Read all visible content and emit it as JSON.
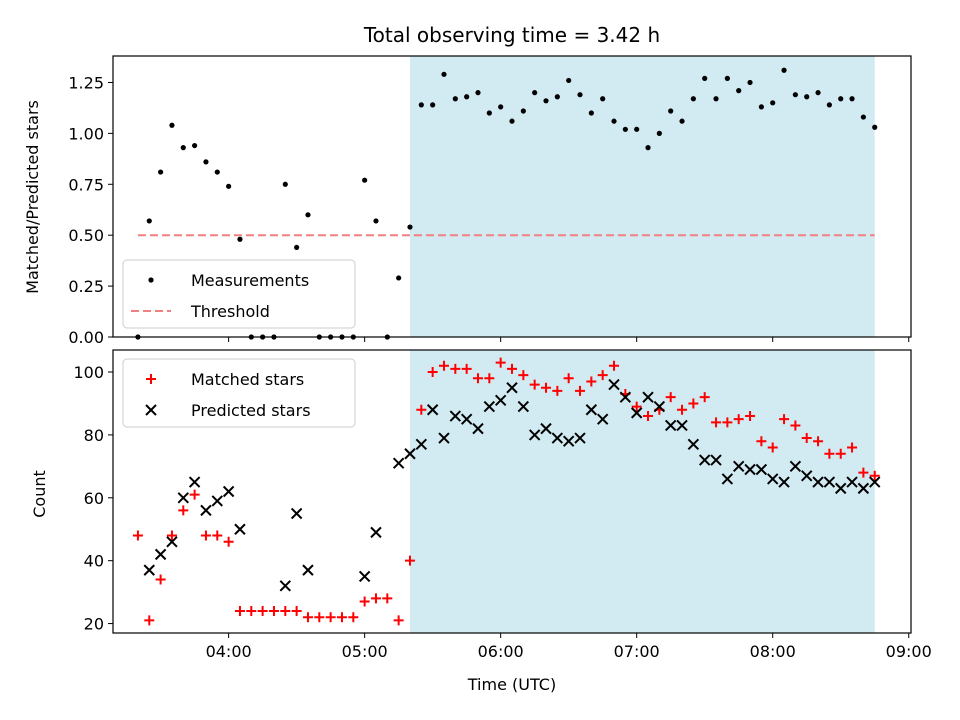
{
  "chart_data": [
    {
      "type": "scatter",
      "title": "Total observing time = 3.42 h",
      "ylabel": "Matched/Predicted stars",
      "xlabel": "",
      "ylim": [
        0,
        1.38
      ],
      "yticks": [
        0.0,
        0.25,
        0.5,
        0.75,
        1.0,
        1.25
      ],
      "yticklabels": [
        "0.00",
        "0.25",
        "0.50",
        "0.75",
        "1.00",
        "1.25"
      ],
      "xlim": [
        "03:09",
        "09:01"
      ],
      "xticks": [
        "04:00",
        "05:00",
        "06:00",
        "07:00",
        "08:00",
        "09:00"
      ],
      "shaded_region": {
        "start": "05:20",
        "end": "08:45",
        "color": "#add8e6"
      },
      "legend": {
        "position": "lower-left",
        "entries": [
          "Measurements",
          "Threshold"
        ]
      },
      "threshold": {
        "name": "Threshold",
        "value": 0.5,
        "x": [
          "03:20",
          "08:45"
        ],
        "color": "#f08080",
        "style": "dashed"
      },
      "series": [
        {
          "name": "Measurements",
          "color": "#000000",
          "points": [
            [
              "03:20",
              0.0
            ],
            [
              "03:25",
              0.57
            ],
            [
              "03:30",
              0.81
            ],
            [
              "03:35",
              1.04
            ],
            [
              "03:40",
              0.93
            ],
            [
              "03:45",
              0.94
            ],
            [
              "03:50",
              0.86
            ],
            [
              "03:55",
              0.81
            ],
            [
              "04:00",
              0.74
            ],
            [
              "04:05",
              0.48
            ],
            [
              "04:10",
              0.0
            ],
            [
              "04:15",
              0.0
            ],
            [
              "04:20",
              0.0
            ],
            [
              "04:25",
              0.75
            ],
            [
              "04:30",
              0.44
            ],
            [
              "04:35",
              0.6
            ],
            [
              "04:40",
              0.0
            ],
            [
              "04:45",
              0.0
            ],
            [
              "04:50",
              0.0
            ],
            [
              "04:55",
              0.0
            ],
            [
              "05:00",
              0.77
            ],
            [
              "05:05",
              0.57
            ],
            [
              "05:10",
              0.0
            ],
            [
              "05:15",
              0.29
            ],
            [
              "05:20",
              0.54
            ],
            [
              "05:25",
              1.14
            ],
            [
              "05:30",
              1.14
            ],
            [
              "05:35",
              1.29
            ],
            [
              "05:40",
              1.17
            ],
            [
              "05:45",
              1.18
            ],
            [
              "05:50",
              1.2
            ],
            [
              "05:55",
              1.1
            ],
            [
              "06:00",
              1.13
            ],
            [
              "06:05",
              1.06
            ],
            [
              "06:10",
              1.11
            ],
            [
              "06:15",
              1.2
            ],
            [
              "06:20",
              1.16
            ],
            [
              "06:25",
              1.18
            ],
            [
              "06:30",
              1.26
            ],
            [
              "06:35",
              1.19
            ],
            [
              "06:40",
              1.1
            ],
            [
              "06:45",
              1.17
            ],
            [
              "06:50",
              1.06
            ],
            [
              "06:55",
              1.02
            ],
            [
              "07:00",
              1.02
            ],
            [
              "07:05",
              0.93
            ],
            [
              "07:10",
              1.0
            ],
            [
              "07:15",
              1.11
            ],
            [
              "07:20",
              1.06
            ],
            [
              "07:25",
              1.17
            ],
            [
              "07:30",
              1.27
            ],
            [
              "07:35",
              1.17
            ],
            [
              "07:40",
              1.27
            ],
            [
              "07:45",
              1.21
            ],
            [
              "07:50",
              1.25
            ],
            [
              "07:55",
              1.13
            ],
            [
              "08:00",
              1.15
            ],
            [
              "08:05",
              1.31
            ],
            [
              "08:10",
              1.19
            ],
            [
              "08:15",
              1.18
            ],
            [
              "08:20",
              1.2
            ],
            [
              "08:25",
              1.14
            ],
            [
              "08:30",
              1.17
            ],
            [
              "08:35",
              1.17
            ],
            [
              "08:40",
              1.08
            ],
            [
              "08:45",
              1.03
            ]
          ]
        }
      ]
    },
    {
      "type": "scatter",
      "title": "",
      "ylabel": "Count",
      "xlabel": "Time (UTC)",
      "ylim": [
        17,
        107
      ],
      "yticks": [
        20,
        40,
        60,
        80,
        100
      ],
      "yticklabels": [
        "20",
        "40",
        "60",
        "80",
        "100"
      ],
      "xlim": [
        "03:09",
        "09:01"
      ],
      "xticks": [
        "04:00",
        "05:00",
        "06:00",
        "07:00",
        "08:00",
        "09:00"
      ],
      "xticklabels": [
        "04:00",
        "05:00",
        "06:00",
        "07:00",
        "08:00",
        "09:00"
      ],
      "shaded_region": {
        "start": "05:20",
        "end": "08:45",
        "color": "#add8e6"
      },
      "legend": {
        "position": "top-left",
        "entries": [
          "Matched stars",
          "Predicted stars"
        ]
      },
      "series": [
        {
          "name": "Matched stars",
          "marker": "plus",
          "color": "#ff0000",
          "points": [
            [
              "03:20",
              48
            ],
            [
              "03:25",
              21
            ],
            [
              "03:30",
              34
            ],
            [
              "03:35",
              48
            ],
            [
              "03:40",
              56
            ],
            [
              "03:45",
              61
            ],
            [
              "03:50",
              48
            ],
            [
              "03:55",
              48
            ],
            [
              "04:00",
              46
            ],
            [
              "04:05",
              24
            ],
            [
              "04:10",
              24
            ],
            [
              "04:15",
              24
            ],
            [
              "04:20",
              24
            ],
            [
              "04:25",
              24
            ],
            [
              "04:30",
              24
            ],
            [
              "04:35",
              22
            ],
            [
              "04:40",
              22
            ],
            [
              "04:45",
              22
            ],
            [
              "04:50",
              22
            ],
            [
              "04:55",
              22
            ],
            [
              "05:00",
              27
            ],
            [
              "05:05",
              28
            ],
            [
              "05:10",
              28
            ],
            [
              "05:15",
              21
            ],
            [
              "05:20",
              40
            ],
            [
              "05:25",
              88
            ],
            [
              "05:30",
              100
            ],
            [
              "05:35",
              102
            ],
            [
              "05:40",
              101
            ],
            [
              "05:45",
              101
            ],
            [
              "05:50",
              98
            ],
            [
              "05:55",
              98
            ],
            [
              "06:00",
              103
            ],
            [
              "06:05",
              101
            ],
            [
              "06:10",
              99
            ],
            [
              "06:15",
              96
            ],
            [
              "06:20",
              95
            ],
            [
              "06:25",
              94
            ],
            [
              "06:30",
              98
            ],
            [
              "06:35",
              94
            ],
            [
              "06:40",
              97
            ],
            [
              "06:45",
              99
            ],
            [
              "06:50",
              102
            ],
            [
              "06:55",
              93
            ],
            [
              "07:00",
              89
            ],
            [
              "07:05",
              86
            ],
            [
              "07:10",
              88
            ],
            [
              "07:15",
              92
            ],
            [
              "07:20",
              88
            ],
            [
              "07:25",
              90
            ],
            [
              "07:30",
              92
            ],
            [
              "07:35",
              84
            ],
            [
              "07:40",
              84
            ],
            [
              "07:45",
              85
            ],
            [
              "07:50",
              86
            ],
            [
              "07:55",
              78
            ],
            [
              "08:00",
              76
            ],
            [
              "08:05",
              85
            ],
            [
              "08:10",
              83
            ],
            [
              "08:15",
              79
            ],
            [
              "08:20",
              78
            ],
            [
              "08:25",
              74
            ],
            [
              "08:30",
              74
            ],
            [
              "08:35",
              76
            ],
            [
              "08:40",
              68
            ],
            [
              "08:45",
              67
            ]
          ]
        },
        {
          "name": "Predicted stars",
          "marker": "x",
          "color": "#000000",
          "points": [
            [
              "03:25",
              37
            ],
            [
              "03:30",
              42
            ],
            [
              "03:35",
              46
            ],
            [
              "03:40",
              60
            ],
            [
              "03:45",
              65
            ],
            [
              "03:50",
              56
            ],
            [
              "03:55",
              59
            ],
            [
              "04:00",
              62
            ],
            [
              "04:05",
              50
            ],
            [
              "04:25",
              32
            ],
            [
              "04:30",
              55
            ],
            [
              "04:35",
              37
            ],
            [
              "05:00",
              35
            ],
            [
              "05:05",
              49
            ],
            [
              "05:15",
              71
            ],
            [
              "05:20",
              74
            ],
            [
              "05:25",
              77
            ],
            [
              "05:30",
              88
            ],
            [
              "05:35",
              79
            ],
            [
              "05:40",
              86
            ],
            [
              "05:45",
              85
            ],
            [
              "05:50",
              82
            ],
            [
              "05:55",
              89
            ],
            [
              "06:00",
              91
            ],
            [
              "06:05",
              95
            ],
            [
              "06:10",
              89
            ],
            [
              "06:15",
              80
            ],
            [
              "06:20",
              82
            ],
            [
              "06:25",
              79
            ],
            [
              "06:30",
              78
            ],
            [
              "06:35",
              79
            ],
            [
              "06:40",
              88
            ],
            [
              "06:45",
              85
            ],
            [
              "06:50",
              96
            ],
            [
              "06:55",
              92
            ],
            [
              "07:00",
              87
            ],
            [
              "07:05",
              92
            ],
            [
              "07:10",
              89
            ],
            [
              "07:15",
              83
            ],
            [
              "07:20",
              83
            ],
            [
              "07:25",
              77
            ],
            [
              "07:30",
              72
            ],
            [
              "07:35",
              72
            ],
            [
              "07:40",
              66
            ],
            [
              "07:45",
              70
            ],
            [
              "07:50",
              69
            ],
            [
              "07:55",
              69
            ],
            [
              "08:00",
              66
            ],
            [
              "08:05",
              65
            ],
            [
              "08:10",
              70
            ],
            [
              "08:15",
              67
            ],
            [
              "08:20",
              65
            ],
            [
              "08:25",
              65
            ],
            [
              "08:30",
              63
            ],
            [
              "08:35",
              65
            ],
            [
              "08:40",
              63
            ],
            [
              "08:45",
              65
            ]
          ]
        }
      ]
    }
  ]
}
